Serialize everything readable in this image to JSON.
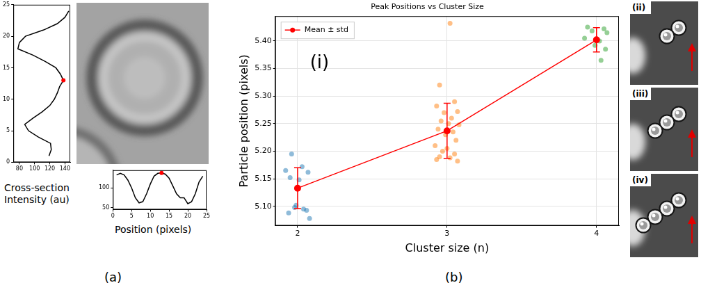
{
  "chart_data": [
    {
      "type": "line",
      "x_label": "Cross-section Intensity (au)",
      "series": [
        {
          "color": "#000000",
          "line_style": "solid",
          "x": [
            119,
            122,
            121,
            105,
            92,
            87,
            98,
            110,
            120,
            126,
            130,
            133,
            138,
            134,
            128,
            114,
            98,
            78,
            80,
            88,
            112,
            130,
            140,
            145
          ],
          "values": [
            1,
            2,
            3,
            4,
            5,
            6,
            7,
            8,
            9,
            10,
            11,
            12,
            13,
            14,
            15,
            16,
            17,
            18,
            19,
            20,
            21,
            22,
            23,
            24
          ]
        }
      ],
      "highlight": {
        "x": 138,
        "y": 13,
        "color": "#ff0000"
      },
      "xlim": [
        72,
        147
      ],
      "xticks": [
        80,
        100,
        120,
        140
      ],
      "ylim": [
        0,
        25
      ],
      "yticks": [
        0,
        5,
        10,
        15,
        20,
        25
      ],
      "grid": false
    },
    {
      "type": "line",
      "x_label": "Position (pixels)",
      "series": [
        {
          "color": "#000000",
          "line_style": "solid",
          "x": [
            1,
            2,
            3,
            4,
            5,
            6,
            7,
            8,
            9,
            10,
            11,
            12,
            13,
            14,
            15,
            16,
            17,
            18,
            19,
            20,
            21,
            22,
            23,
            24
          ],
          "values": [
            133,
            137,
            133,
            120,
            100,
            75,
            62,
            65,
            85,
            110,
            130,
            137,
            138,
            135,
            125,
            105,
            85,
            75,
            75,
            60,
            65,
            85,
            115,
            130
          ]
        }
      ],
      "highlight": {
        "x": 13,
        "y": 138,
        "color": "#ff0000"
      },
      "xlim": [
        0,
        25
      ],
      "xticks": [
        0,
        5,
        10,
        15,
        20,
        25
      ],
      "ylim": [
        45,
        145
      ],
      "yticks": [
        50,
        100
      ],
      "grid": false
    },
    {
      "type": "scatter",
      "title": "Peak Positions vs Cluster Size",
      "x_label": "Cluster size (n)",
      "y_label": "Particle position (pixels)",
      "annotation": "(i)",
      "series": [
        {
          "color": "#1f77b4",
          "marker": "circle",
          "x": [
            1.96,
            2.03,
            1.92,
            2.07,
            1.95,
            2.01,
            1.98,
            2.04,
            2.06,
            1.94,
            2.08,
            1.99
          ],
          "values": [
            5.195,
            5.172,
            5.165,
            5.162,
            5.152,
            5.148,
            5.098,
            5.095,
            5.093,
            5.088,
            5.078,
            5.102
          ]
        },
        {
          "color": "#ff7f0e",
          "marker": "circle",
          "x": [
            3.02,
            2.95,
            3.05,
            2.93,
            3.07,
            2.98,
            3.03,
            2.96,
            3.01,
            3.08,
            2.94,
            3.04,
            2.99,
            3.06,
            2.92,
            3.0,
            2.97,
            3.05,
            2.95,
            3.02,
            2.93,
            3.07
          ],
          "values": [
            5.432,
            5.32,
            5.29,
            5.282,
            5.272,
            5.27,
            5.26,
            5.255,
            5.25,
            5.248,
            5.24,
            5.235,
            5.23,
            5.22,
            5.21,
            5.205,
            5.2,
            5.195,
            5.19,
            5.188,
            5.185,
            5.182
          ]
        },
        {
          "color": "#2ca02c",
          "marker": "circle",
          "x": [
            3.94,
            4.05,
            3.97,
            4.07,
            3.92,
            4.02,
            3.99,
            4.06,
            4.03
          ],
          "values": [
            5.425,
            5.422,
            5.418,
            5.415,
            5.405,
            5.4,
            5.392,
            5.385,
            5.365
          ]
        },
        {
          "name": "Mean ± std",
          "type": "line",
          "color": "#ff0000",
          "marker": "circle",
          "line_style": "solid",
          "x": [
            2,
            3,
            4
          ],
          "values": [
            5.133,
            5.237,
            5.402
          ],
          "error": [
            0.037,
            0.05,
            0.022
          ]
        }
      ],
      "xlim": [
        1.85,
        4.15
      ],
      "xticks": [
        2,
        3,
        4
      ],
      "ylim": [
        5.065,
        5.445
      ],
      "yticks": [
        {
          "value": 5.1,
          "label": "5.10"
        },
        5.15,
        {
          "value": 5.2,
          "label": "5.20"
        },
        5.25,
        {
          "value": 5.3,
          "label": "5.30"
        },
        5.35,
        {
          "value": 5.4,
          "label": "5.40"
        }
      ],
      "grid": true,
      "legend": "upper left"
    }
  ],
  "panel_labels": [
    "(a)",
    "(b)"
  ],
  "micrographs": [
    {
      "label": "(ii)",
      "particles": 2
    },
    {
      "label": "(iii)",
      "particles": 3
    },
    {
      "label": "(iv)",
      "particles": 4
    }
  ]
}
